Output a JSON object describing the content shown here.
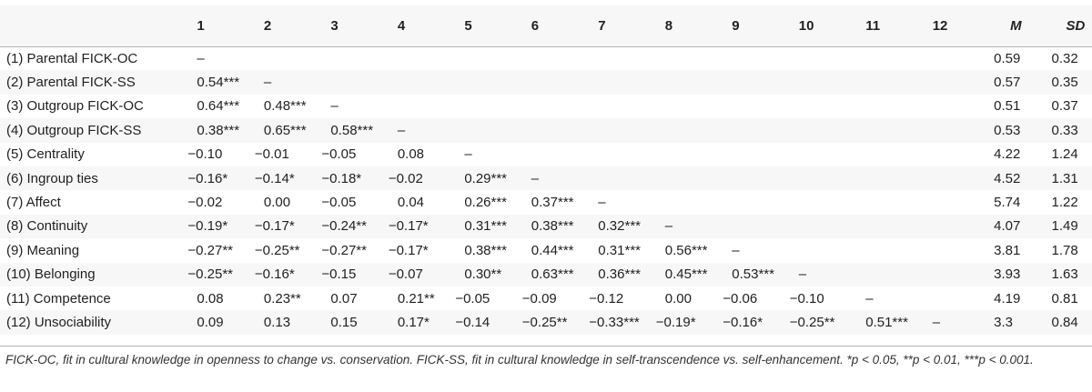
{
  "columns": [
    "",
    "1",
    "2",
    "3",
    "4",
    "5",
    "6",
    "7",
    "8",
    "9",
    "10",
    "11",
    "12",
    "M",
    "SD"
  ],
  "rows": [
    {
      "label": "(1) Parental FICK-OC",
      "cells": [
        "–",
        "",
        "",
        "",
        "",
        "",
        "",
        "",
        "",
        "",
        "",
        "",
        "0.59",
        "0.32"
      ]
    },
    {
      "label": "(2) Parental FICK-SS",
      "cells": [
        "0.54***",
        "–",
        "",
        "",
        "",
        "",
        "",
        "",
        "",
        "",
        "",
        "",
        "0.57",
        "0.35"
      ]
    },
    {
      "label": "(3) Outgroup FICK-OC",
      "cells": [
        "0.64***",
        "0.48***",
        "–",
        "",
        "",
        "",
        "",
        "",
        "",
        "",
        "",
        "",
        "0.51",
        "0.37"
      ]
    },
    {
      "label": "(4) Outgroup FICK-SS",
      "cells": [
        "0.38***",
        "0.65***",
        "0.58***",
        "–",
        "",
        "",
        "",
        "",
        "",
        "",
        "",
        "",
        "0.53",
        "0.33"
      ]
    },
    {
      "label": "(5) Centrality",
      "cells": [
        "−0.10",
        "−0.01",
        "−0.05",
        "0.08",
        "–",
        "",
        "",
        "",
        "",
        "",
        "",
        "",
        "4.22",
        "1.24"
      ]
    },
    {
      "label": "(6) Ingroup ties",
      "cells": [
        "−0.16*",
        "−0.14*",
        "−0.18*",
        "−0.02",
        "0.29***",
        "–",
        "",
        "",
        "",
        "",
        "",
        "",
        "4.52",
        "1.31"
      ]
    },
    {
      "label": "(7) Affect",
      "cells": [
        "−0.02",
        "0.00",
        "−0.05",
        "0.04",
        "0.26***",
        "0.37***",
        "–",
        "",
        "",
        "",
        "",
        "",
        "5.74",
        "1.22"
      ]
    },
    {
      "label": "(8) Continuity",
      "cells": [
        "−0.19*",
        "−0.17*",
        "−0.24**",
        "−0.17*",
        "0.31***",
        "0.38***",
        "0.32***",
        "–",
        "",
        "",
        "",
        "",
        "4.07",
        "1.49"
      ]
    },
    {
      "label": "(9) Meaning",
      "cells": [
        "−0.27**",
        "−0.25**",
        "−0.27**",
        "−0.17*",
        "0.38***",
        "0.44***",
        "0.31***",
        "0.56***",
        "–",
        "",
        "",
        "",
        "3.81",
        "1.78"
      ]
    },
    {
      "label": "(10) Belonging",
      "cells": [
        "−0.25**",
        "−0.16*",
        "−0.15",
        "−0.07",
        "0.30**",
        "0.63***",
        "0.36***",
        "0.45***",
        "0.53***",
        "–",
        "",
        "",
        "3.93",
        "1.63"
      ]
    },
    {
      "label": "(11) Competence",
      "cells": [
        "0.08",
        "0.23**",
        "0.07",
        "0.21**",
        "−0.05",
        "−0.09",
        "−0.12",
        "0.00",
        "−0.06",
        "−0.10",
        "–",
        "",
        "4.19",
        "0.81"
      ]
    },
    {
      "label": "(12) Unsociability",
      "cells": [
        "0.09",
        "0.13",
        "0.15",
        "0.17*",
        "−0.14",
        "−0.25**",
        "−0.33***",
        "−0.19*",
        "−0.16*",
        "−0.25**",
        "0.51***",
        "–",
        "3.3",
        "0.84"
      ]
    }
  ],
  "footnote": "FICK-OC, fit in cultural knowledge in openness to change vs. conservation. FICK-SS, fit in cultural knowledge in self-transcendence vs. self-enhancement. *p < 0.05, **p < 0.01, ***p < 0.001."
}
